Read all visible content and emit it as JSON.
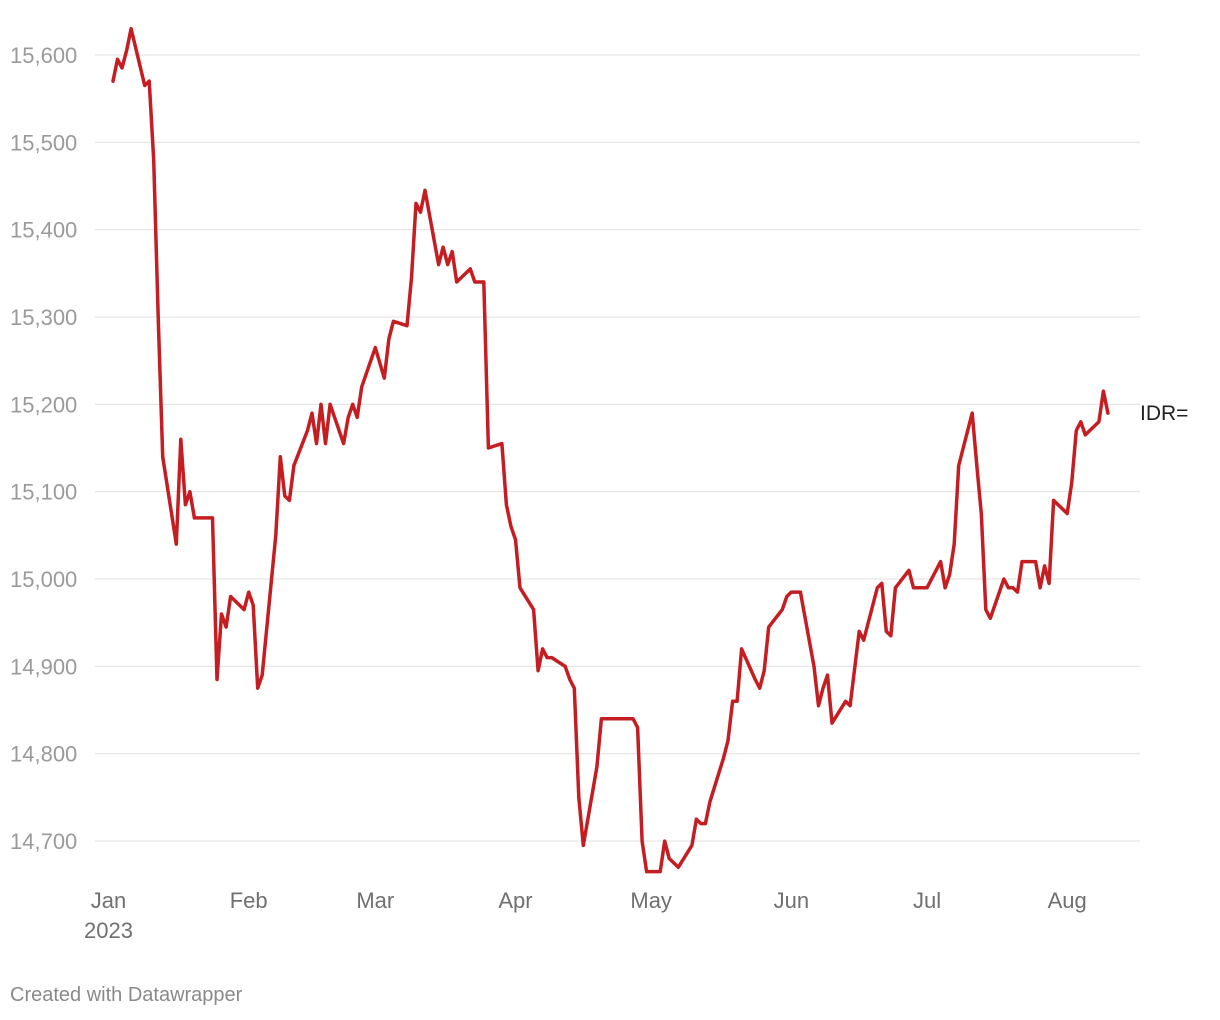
{
  "chart_data": {
    "type": "line",
    "title": "",
    "xlabel": "",
    "ylabel": "",
    "ylim": [
      14660,
      15640
    ],
    "xlim": [
      "2023-01-02",
      "2023-08-14"
    ],
    "yticks": [
      14700,
      14800,
      14900,
      15000,
      15100,
      15200,
      15300,
      15400,
      15500,
      15600
    ],
    "ytick_labels": [
      "14,700",
      "14,800",
      "14,900",
      "15,000",
      "15,100",
      "15,200",
      "15,300",
      "15,400",
      "15,500",
      "15,600"
    ],
    "xticks": [
      {
        "date": "2023-01-01",
        "label": "Jan",
        "sublabel": "2023"
      },
      {
        "date": "2023-02-01",
        "label": "Feb",
        "sublabel": ""
      },
      {
        "date": "2023-03-01",
        "label": "Mar",
        "sublabel": ""
      },
      {
        "date": "2023-04-01",
        "label": "Apr",
        "sublabel": ""
      },
      {
        "date": "2023-05-01",
        "label": "May",
        "sublabel": ""
      },
      {
        "date": "2023-06-01",
        "label": "Jun",
        "sublabel": ""
      },
      {
        "date": "2023-07-01",
        "label": "Jul",
        "sublabel": ""
      },
      {
        "date": "2023-08-01",
        "label": "Aug",
        "sublabel": ""
      }
    ],
    "grid": true,
    "legend": "none",
    "series": [
      {
        "name": "IDR=",
        "color": "#c41e22",
        "points": [
          [
            "2023-01-02",
            15570
          ],
          [
            "2023-01-03",
            15595
          ],
          [
            "2023-01-04",
            15585
          ],
          [
            "2023-01-05",
            15605
          ],
          [
            "2023-01-06",
            15630
          ],
          [
            "2023-01-09",
            15565
          ],
          [
            "2023-01-10",
            15570
          ],
          [
            "2023-01-11",
            15480
          ],
          [
            "2023-01-12",
            15300
          ],
          [
            "2023-01-13",
            15140
          ],
          [
            "2023-01-16",
            15040
          ],
          [
            "2023-01-17",
            15160
          ],
          [
            "2023-01-18",
            15085
          ],
          [
            "2023-01-19",
            15100
          ],
          [
            "2023-01-20",
            15070
          ],
          [
            "2023-01-23",
            15070
          ],
          [
            "2023-01-24",
            15070
          ],
          [
            "2023-01-25",
            14885
          ],
          [
            "2023-01-26",
            14960
          ],
          [
            "2023-01-27",
            14945
          ],
          [
            "2023-01-28",
            14980
          ],
          [
            "2023-01-31",
            14965
          ],
          [
            "2023-02-01",
            14985
          ],
          [
            "2023-02-02",
            14970
          ],
          [
            "2023-02-03",
            14875
          ],
          [
            "2023-02-04",
            14890
          ],
          [
            "2023-02-07",
            15050
          ],
          [
            "2023-02-08",
            15140
          ],
          [
            "2023-02-09",
            15095
          ],
          [
            "2023-02-10",
            15090
          ],
          [
            "2023-02-11",
            15130
          ],
          [
            "2023-02-14",
            15170
          ],
          [
            "2023-02-15",
            15190
          ],
          [
            "2023-02-16",
            15155
          ],
          [
            "2023-02-17",
            15200
          ],
          [
            "2023-02-18",
            15155
          ],
          [
            "2023-02-19",
            15200
          ],
          [
            "2023-02-22",
            15155
          ],
          [
            "2023-02-23",
            15185
          ],
          [
            "2023-02-24",
            15200
          ],
          [
            "2023-02-25",
            15185
          ],
          [
            "2023-02-26",
            15220
          ],
          [
            "2023-03-01",
            15265
          ],
          [
            "2023-03-03",
            15230
          ],
          [
            "2023-03-04",
            15275
          ],
          [
            "2023-03-05",
            15295
          ],
          [
            "2023-03-08",
            15290
          ],
          [
            "2023-03-09",
            15345
          ],
          [
            "2023-03-10",
            15430
          ],
          [
            "2023-03-11",
            15420
          ],
          [
            "2023-03-12",
            15445
          ],
          [
            "2023-03-15",
            15360
          ],
          [
            "2023-03-16",
            15380
          ],
          [
            "2023-03-17",
            15360
          ],
          [
            "2023-03-18",
            15375
          ],
          [
            "2023-03-19",
            15340
          ],
          [
            "2023-03-22",
            15355
          ],
          [
            "2023-03-23",
            15340
          ],
          [
            "2023-03-24",
            15340
          ],
          [
            "2023-03-25",
            15340
          ],
          [
            "2023-03-26",
            15150
          ],
          [
            "2023-03-29",
            15155
          ],
          [
            "2023-03-30",
            15085
          ],
          [
            "2023-03-31",
            15060
          ],
          [
            "2023-04-01",
            15045
          ],
          [
            "2023-04-02",
            14990
          ],
          [
            "2023-04-05",
            14965
          ],
          [
            "2023-04-06",
            14895
          ],
          [
            "2023-04-07",
            14920
          ],
          [
            "2023-04-08",
            14910
          ],
          [
            "2023-04-09",
            14910
          ],
          [
            "2023-04-12",
            14900
          ],
          [
            "2023-04-13",
            14885
          ],
          [
            "2023-04-14",
            14875
          ],
          [
            "2023-04-15",
            14750
          ],
          [
            "2023-04-16",
            14695
          ],
          [
            "2023-04-19",
            14785
          ],
          [
            "2023-04-20",
            14840
          ],
          [
            "2023-04-27",
            14840
          ],
          [
            "2023-04-28",
            14830
          ],
          [
            "2023-04-29",
            14700
          ],
          [
            "2023-04-30",
            14665
          ],
          [
            "2023-05-03",
            14665
          ],
          [
            "2023-05-04",
            14700
          ],
          [
            "2023-05-05",
            14680
          ],
          [
            "2023-05-07",
            14670
          ],
          [
            "2023-05-10",
            14695
          ],
          [
            "2023-05-11",
            14725
          ],
          [
            "2023-05-12",
            14720
          ],
          [
            "2023-05-13",
            14720
          ],
          [
            "2023-05-14",
            14745
          ],
          [
            "2023-05-17",
            14795
          ],
          [
            "2023-05-18",
            14815
          ],
          [
            "2023-05-19",
            14860
          ],
          [
            "2023-05-20",
            14860
          ],
          [
            "2023-05-21",
            14920
          ],
          [
            "2023-05-24",
            14885
          ],
          [
            "2023-05-25",
            14875
          ],
          [
            "2023-05-26",
            14895
          ],
          [
            "2023-05-27",
            14945
          ],
          [
            "2023-05-30",
            14965
          ],
          [
            "2023-05-31",
            14980
          ],
          [
            "2023-06-01",
            14985
          ],
          [
            "2023-06-03",
            14985
          ],
          [
            "2023-06-06",
            14900
          ],
          [
            "2023-06-07",
            14855
          ],
          [
            "2023-06-08",
            14875
          ],
          [
            "2023-06-09",
            14890
          ],
          [
            "2023-06-10",
            14835
          ],
          [
            "2023-06-13",
            14860
          ],
          [
            "2023-06-14",
            14855
          ],
          [
            "2023-06-16",
            14940
          ],
          [
            "2023-06-17",
            14930
          ],
          [
            "2023-06-20",
            14990
          ],
          [
            "2023-06-21",
            14995
          ],
          [
            "2023-06-22",
            14940
          ],
          [
            "2023-06-23",
            14935
          ],
          [
            "2023-06-24",
            14990
          ],
          [
            "2023-06-27",
            15010
          ],
          [
            "2023-06-28",
            14990
          ],
          [
            "2023-07-01",
            14990
          ],
          [
            "2023-07-04",
            15020
          ],
          [
            "2023-07-05",
            14990
          ],
          [
            "2023-07-06",
            15005
          ],
          [
            "2023-07-07",
            15040
          ],
          [
            "2023-07-08",
            15130
          ],
          [
            "2023-07-11",
            15190
          ],
          [
            "2023-07-12",
            15130
          ],
          [
            "2023-07-13",
            15075
          ],
          [
            "2023-07-14",
            14965
          ],
          [
            "2023-07-15",
            14955
          ],
          [
            "2023-07-18",
            15000
          ],
          [
            "2023-07-19",
            14990
          ],
          [
            "2023-07-20",
            14990
          ],
          [
            "2023-07-21",
            14985
          ],
          [
            "2023-07-22",
            15020
          ],
          [
            "2023-07-25",
            15020
          ],
          [
            "2023-07-26",
            14990
          ],
          [
            "2023-07-27",
            15015
          ],
          [
            "2023-07-28",
            14995
          ],
          [
            "2023-07-29",
            15090
          ],
          [
            "2023-08-01",
            15075
          ],
          [
            "2023-08-02",
            15110
          ],
          [
            "2023-08-03",
            15170
          ],
          [
            "2023-08-04",
            15180
          ],
          [
            "2023-08-05",
            15165
          ],
          [
            "2023-08-08",
            15180
          ],
          [
            "2023-08-09",
            15215
          ],
          [
            "2023-08-10",
            15190
          ]
        ]
      }
    ]
  },
  "credit": "Created with Datawrapper"
}
